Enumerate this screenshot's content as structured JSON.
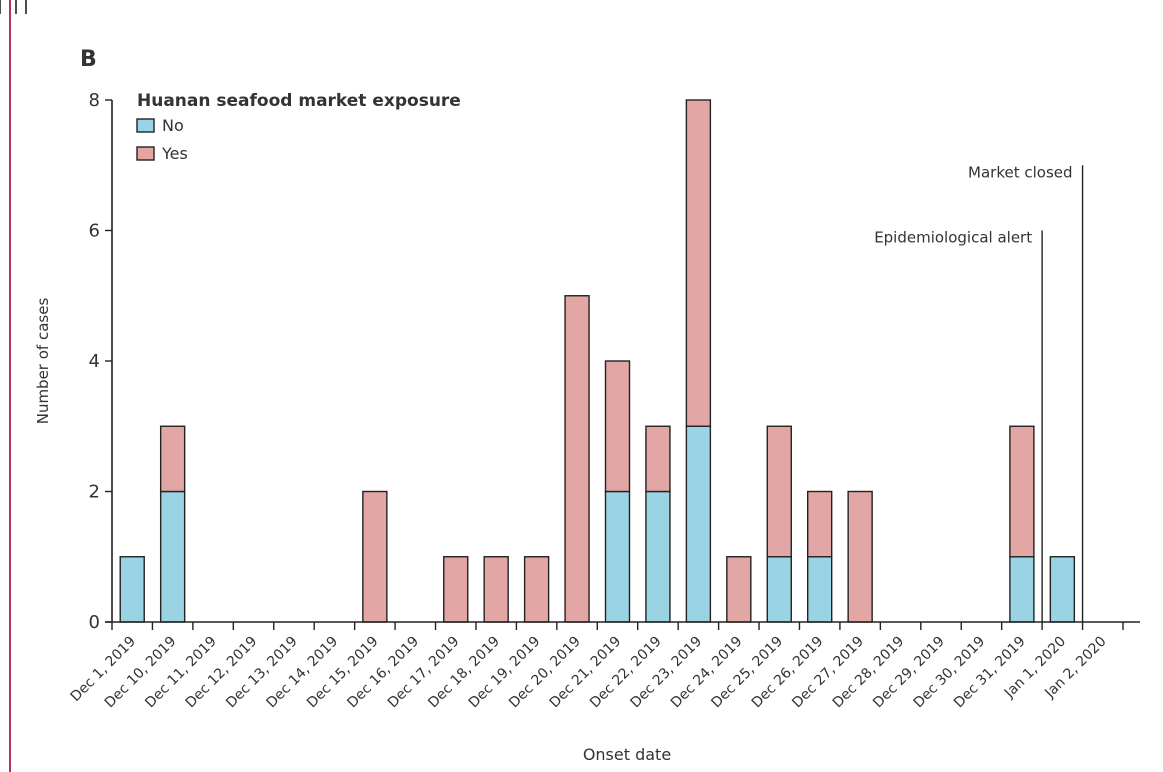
{
  "chart_data": {
    "type": "bar",
    "stacked": true,
    "panel_label": "B",
    "xlabel": "Onset date",
    "ylabel": "Number of cases",
    "ylim": [
      0,
      8
    ],
    "yticks": [
      0,
      2,
      4,
      6,
      8
    ],
    "grid": false,
    "legend": {
      "title": "Huanan seafood market exposure",
      "position": "top-left",
      "entries": [
        {
          "name": "No",
          "color": "#9ad4e4"
        },
        {
          "name": "Yes",
          "color": "#e2a6a4"
        }
      ]
    },
    "categories": [
      "Dec 1, 2019",
      "Dec 10, 2019",
      "Dec 11, 2019",
      "Dec 12, 2019",
      "Dec 13, 2019",
      "Dec 14, 2019",
      "Dec 15, 2019",
      "Dec 16, 2019",
      "Dec 17, 2019",
      "Dec 18, 2019",
      "Dec 19, 2019",
      "Dec 20, 2019",
      "Dec 21, 2019",
      "Dec 22, 2019",
      "Dec 23, 2019",
      "Dec 24, 2019",
      "Dec 25, 2019",
      "Dec 26, 2019",
      "Dec 27, 2019",
      "Dec 28, 2019",
      "Dec 29, 2019",
      "Dec 30, 2019",
      "Dec 31, 2019",
      "Jan 1, 2020",
      "Jan 2, 2020"
    ],
    "series": [
      {
        "name": "No",
        "color": "#9ad4e4",
        "values": [
          1,
          2,
          0,
          0,
          0,
          0,
          0,
          0,
          0,
          0,
          0,
          0,
          2,
          2,
          3,
          0,
          1,
          1,
          0,
          0,
          0,
          0,
          1,
          1,
          0
        ]
      },
      {
        "name": "Yes",
        "color": "#e2a6a4",
        "values": [
          0,
          1,
          0,
          0,
          0,
          0,
          2,
          0,
          1,
          1,
          1,
          5,
          2,
          1,
          5,
          1,
          2,
          1,
          2,
          0,
          0,
          0,
          2,
          0,
          0
        ]
      }
    ],
    "annotations": [
      {
        "text": "Epidemiological alert",
        "category": "Dec 31, 2019",
        "y": 6
      },
      {
        "text": "Market closed",
        "category": "Jan 1, 2020",
        "y": 7
      }
    ]
  }
}
